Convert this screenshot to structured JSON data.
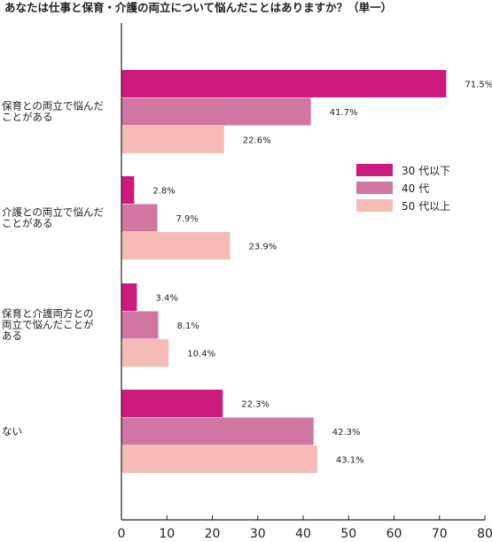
{
  "chart_data": {
    "type": "bar",
    "orientation": "horizontal",
    "title": "あなたは仕事と保育・介護の両立について悩んだことはありますか？（単一）",
    "categories": [
      [
        "保育との両立で悩んだ",
        "ことがある"
      ],
      [
        "介護との両立で悩んだ",
        "ことがある"
      ],
      [
        "保育と介護両方との",
        "両立で悩んだことが",
        "ある"
      ],
      [
        "ない"
      ]
    ],
    "series": [
      {
        "name": "30 代以下",
        "color": "#cc1a7f",
        "values": [
          71.5,
          2.8,
          3.4,
          22.3
        ],
        "labels": [
          "71.5%",
          "2.8%",
          "3.4%",
          "22.3%"
        ]
      },
      {
        "name": "40 代",
        "color": "#d175a1",
        "values": [
          41.7,
          7.9,
          8.1,
          42.3
        ],
        "labels": [
          "41.7%",
          "7.9%",
          "8.1%",
          "42.3%"
        ]
      },
      {
        "name": "50 代以上",
        "color": "#f5bcb7",
        "values": [
          22.6,
          23.9,
          10.4,
          43.1
        ],
        "labels": [
          "22.6%",
          "23.9%",
          "10.4%",
          "43.1%"
        ]
      }
    ],
    "xlim": [
      0,
      80
    ],
    "xticks": [
      "0",
      "10",
      "20",
      "30",
      "40",
      "50",
      "60",
      "70",
      "80"
    ],
    "grid": false,
    "legend_position": "right"
  }
}
